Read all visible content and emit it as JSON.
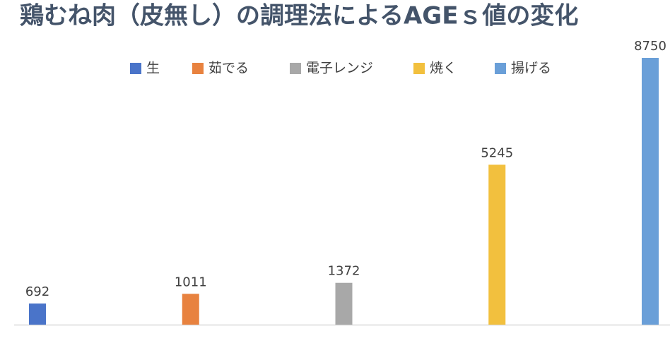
{
  "chart_data": {
    "type": "bar",
    "title": "鶏むね肉（皮無し）の調理法によるAGEｓ値の変化",
    "series": [
      {
        "name": "生",
        "color": "#4a74c9",
        "values": [
          692
        ]
      },
      {
        "name": "茹でる",
        "color": "#e8823f",
        "values": [
          1011
        ]
      },
      {
        "name": "電子レンジ",
        "color": "#a8a8a8",
        "values": [
          1372
        ]
      },
      {
        "name": "焼く",
        "color": "#f2c03e",
        "values": [
          5245
        ]
      },
      {
        "name": "揚げる",
        "color": "#6a9fd8",
        "values": [
          8750
        ]
      }
    ],
    "legend": "top"
  }
}
